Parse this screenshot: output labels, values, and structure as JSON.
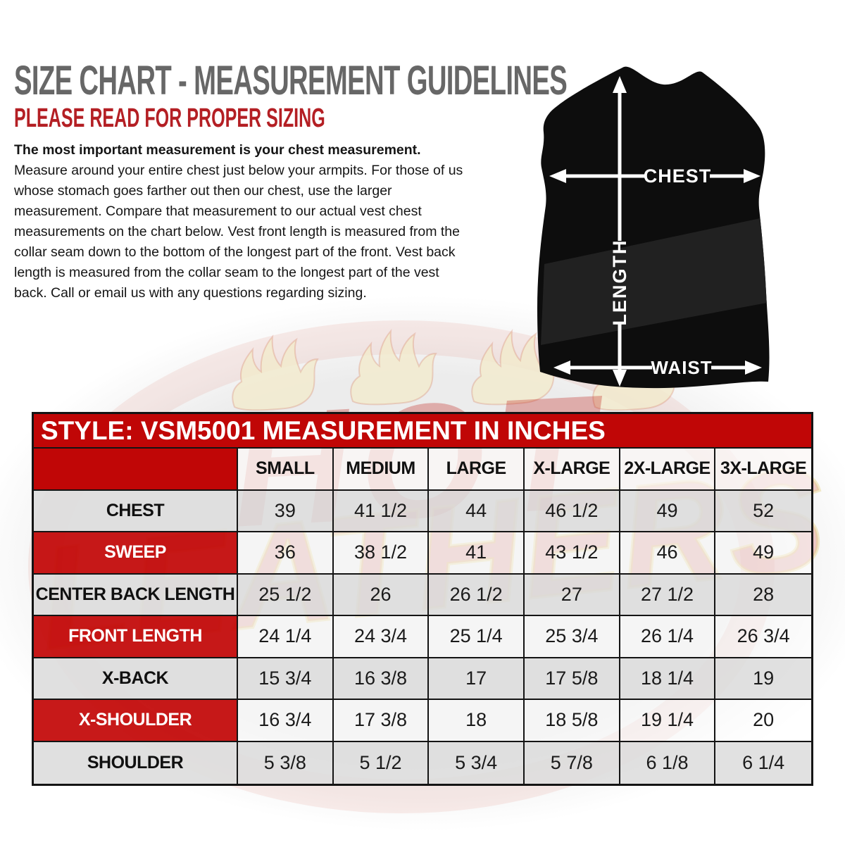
{
  "page": {
    "title": "SIZE CHART - MEASUREMENT GUIDELINES",
    "subtitle": "PLEASE READ FOR PROPER SIZING",
    "intro_bold": "The most important measurement is your chest measurement.",
    "intro_rest": " Measure around your entire chest just below your armpits.  For those of us whose stomach goes farther out then our chest, use the larger measurement. Compare that measurement to our actual vest chest measurements on the chart below.  Vest front length is measured from the collar seam down to the bottom of the longest part of the front.  Vest back length is measured from the collar seam to the longest part of the vest back.  Call or email us with any questions regarding sizing."
  },
  "diagram": {
    "labels": {
      "chest": "CHEST",
      "length": "LENGTH",
      "waist": "WAIST"
    }
  },
  "watermark": {
    "word_top": "HOT",
    "word_bottom": "LEATHERS"
  },
  "table": {
    "title": "STYLE: VSM5001 MEASUREMENT IN INCHES",
    "columns": [
      "SMALL",
      "MEDIUM",
      "LARGE",
      "X-LARGE",
      "2X-LARGE",
      "3X-LARGE"
    ],
    "rows": [
      {
        "label": "CHEST",
        "style": "gray",
        "values": [
          "39",
          "41 1/2",
          "44",
          "46 1/2",
          "49",
          "52"
        ]
      },
      {
        "label": "SWEEP",
        "style": "red",
        "values": [
          "36",
          "38 1/2",
          "41",
          "43 1/2",
          "46",
          "49"
        ]
      },
      {
        "label": "CENTER BACK LENGTH",
        "style": "gray",
        "values": [
          "25 1/2",
          "26",
          "26 1/2",
          "27",
          "27 1/2",
          "28"
        ]
      },
      {
        "label": "FRONT LENGTH",
        "style": "red",
        "values": [
          "24 1/4",
          "24 3/4",
          "25 1/4",
          "25 3/4",
          "26 1/4",
          "26 3/4"
        ]
      },
      {
        "label": "X-BACK",
        "style": "gray",
        "values": [
          "15 3/4",
          "16 3/8",
          "17",
          "17 5/8",
          "18 1/4",
          "19"
        ]
      },
      {
        "label": "X-SHOULDER",
        "style": "red",
        "values": [
          "16 3/4",
          "17 3/8",
          "18",
          "18 5/8",
          "19 1/4",
          "20"
        ]
      },
      {
        "label": "SHOULDER",
        "style": "gray",
        "values": [
          "5 3/8",
          "5 1/2",
          "5 3/4",
          "5 7/8",
          "6 1/8",
          "6 1/4"
        ]
      }
    ]
  },
  "colors": {
    "accent_red": "#c00606",
    "subtitle_red": "#b41f24",
    "title_gray": "#676767",
    "row_gray": "#dddddd",
    "vest_black": "#0d0d0d",
    "flame_cream": "#f3ebcd"
  }
}
